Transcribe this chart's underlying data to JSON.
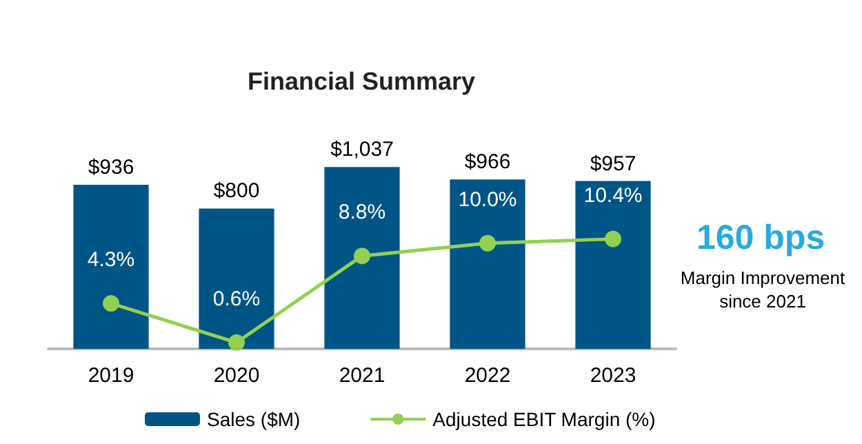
{
  "chart_data": {
    "type": "bar",
    "title": "Financial Summary",
    "categories": [
      "2019",
      "2020",
      "2021",
      "2022",
      "2023"
    ],
    "series": [
      {
        "name": "Sales ($M)",
        "color": "#005587",
        "values": [
          936,
          800,
          1037,
          966,
          957
        ],
        "value_labels": [
          "$936",
          "$800",
          "$1,037",
          "$966",
          "$957"
        ]
      },
      {
        "name": "Adjusted EBIT Margin (%)",
        "type": "line",
        "axis": "y2",
        "color": "#92d050",
        "marker": "circle",
        "values": [
          4.3,
          0.6,
          8.8,
          10.0,
          10.4
        ],
        "value_labels": [
          "4.3%",
          "0.6%",
          "8.8%",
          "10.0%",
          "10.4%"
        ]
      }
    ],
    "tick_labels": "x",
    "legend": "bottom",
    "annotations": [
      "160 bps",
      "Margin Improvement\nsince 2021"
    ]
  }
}
